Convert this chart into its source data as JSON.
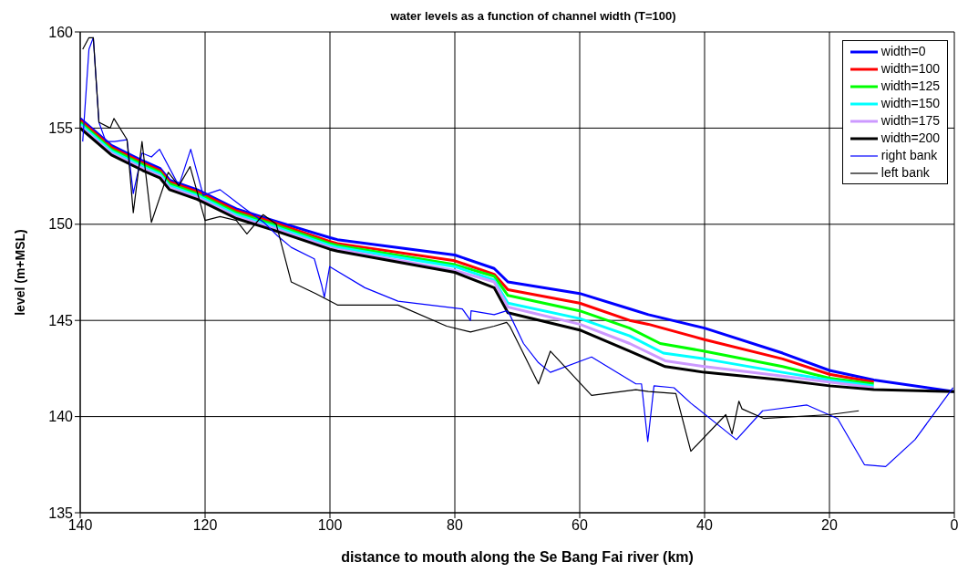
{
  "chart_data": {
    "type": "line",
    "title": "water levels as a function of channel width (T=100)",
    "xlabel": "distance to mouth along the Se Bang Fai river (km)",
    "ylabel": "level (m+MSL)",
    "xlim": [
      140,
      0
    ],
    "xticks": [
      140,
      120,
      100,
      80,
      60,
      40,
      20,
      0
    ],
    "ylim": [
      135,
      160
    ],
    "yticks": [
      135,
      140,
      145,
      150,
      155,
      160
    ],
    "grid": true,
    "legend": "top right",
    "marker": "none",
    "line_style": "solid",
    "series": [
      {
        "name": "width=0",
        "color": "#0000ff",
        "x": [
          140,
          135,
          130,
          127.2,
          125.7,
          121.3,
          120,
          115,
          109.1,
          100,
          98.8,
          80,
          73.7,
          71.5,
          60,
          52,
          49,
          40,
          27.5,
          20,
          12.9,
          0
        ],
        "values": [
          155.5,
          154.1,
          153.3,
          152.9,
          152.3,
          151.8,
          151.6,
          150.8,
          150.2,
          149.3,
          149.2,
          148.4,
          147.7,
          147.0,
          146.4,
          145.6,
          145.3,
          144.6,
          143.3,
          142.4,
          141.9,
          141.3
        ]
      },
      {
        "name": "width=100",
        "color": "#ff0000",
        "x": [
          140,
          135,
          130,
          127.2,
          125.7,
          121.3,
          120,
          115,
          109.1,
          100,
          98.8,
          80,
          73.7,
          71.5,
          60,
          52,
          49,
          40,
          27.5,
          20,
          12.9
        ],
        "values": [
          155.4,
          154.0,
          153.2,
          152.8,
          152.2,
          151.7,
          151.5,
          150.7,
          150.1,
          149.1,
          149.0,
          148.1,
          147.4,
          146.6,
          145.9,
          145.0,
          144.8,
          144.0,
          143.0,
          142.2,
          141.8
        ]
      },
      {
        "name": "width=125",
        "color": "#00ff00",
        "x": [
          140,
          135,
          130,
          127.2,
          125.7,
          121.3,
          120,
          115,
          109.1,
          100,
          98.8,
          80,
          73.7,
          71.5,
          60,
          52,
          47.1,
          40,
          27.5,
          20,
          12.9
        ],
        "values": [
          155.3,
          153.9,
          153.1,
          152.7,
          152.1,
          151.6,
          151.4,
          150.6,
          150.0,
          149.0,
          148.9,
          147.9,
          147.3,
          146.3,
          145.5,
          144.6,
          143.8,
          143.4,
          142.6,
          142.0,
          141.7
        ]
      },
      {
        "name": "width=150",
        "color": "#00ffff",
        "x": [
          140,
          135,
          130,
          127.2,
          125.7,
          121.3,
          120,
          115,
          109.1,
          100,
          98.8,
          80,
          73.7,
          71.5,
          60,
          52,
          46.6,
          40,
          27.5,
          20,
          12.9
        ],
        "values": [
          155.2,
          153.8,
          153.0,
          152.6,
          152.0,
          151.5,
          151.3,
          150.5,
          149.9,
          148.9,
          148.8,
          147.8,
          147.1,
          145.9,
          145.1,
          144.2,
          143.3,
          143.0,
          142.3,
          141.9,
          141.6
        ]
      },
      {
        "name": "width=175",
        "color": "#cc99ff",
        "x": [
          140,
          135,
          130,
          127.2,
          125.7,
          121.3,
          120,
          115,
          109.1,
          100,
          98.8,
          80,
          73.7,
          71.5,
          60,
          52,
          46.3,
          40,
          27.5,
          20,
          12.9
        ],
        "values": [
          155.1,
          153.7,
          152.9,
          152.5,
          151.9,
          151.4,
          151.2,
          150.4,
          149.8,
          148.8,
          148.7,
          147.6,
          147.0,
          145.7,
          144.8,
          143.8,
          142.9,
          142.6,
          142.1,
          141.8,
          141.5
        ]
      },
      {
        "name": "width=200",
        "color": "#000000",
        "x": [
          140,
          135,
          130,
          127.2,
          125.7,
          121.3,
          120,
          115,
          109.1,
          100,
          98.8,
          80,
          73.7,
          71.5,
          60,
          52,
          46.3,
          40,
          27.5,
          20,
          12.9,
          0
        ],
        "values": [
          155.0,
          153.6,
          152.8,
          152.4,
          151.8,
          151.3,
          151.1,
          150.3,
          149.7,
          148.7,
          148.6,
          147.5,
          146.7,
          145.4,
          144.5,
          143.4,
          142.6,
          142.3,
          141.9,
          141.6,
          141.4,
          141.3
        ]
      },
      {
        "name": "right bank",
        "color": "#0000ff",
        "x": [
          139.6,
          138.6,
          137.9,
          137.0,
          135.9,
          134.5,
          132.5,
          131.5,
          130.1,
          128.6,
          127.3,
          124.2,
          122.3,
          120.3,
          117.6,
          114.0,
          110.6,
          108.4,
          106.2,
          102.5,
          101.3,
          100.9,
          100.05,
          94.4,
          89.1,
          78.8,
          77.5,
          77.4,
          73.7,
          71.7,
          71.2,
          69.0,
          66.6,
          64.7,
          58.1,
          51.0,
          50.1,
          49.1,
          48.1,
          44.9,
          42.2,
          34.9,
          30.7,
          23.6,
          18.7,
          14.4,
          11.0,
          6.3,
          0.2
        ],
        "values": [
          154.3,
          159.1,
          159.7,
          155.3,
          154.3,
          154.3,
          154.4,
          151.6,
          153.7,
          153.5,
          153.9,
          152.0,
          153.9,
          151.5,
          151.8,
          150.9,
          150.1,
          149.4,
          148.8,
          148.2,
          146.8,
          146.2,
          147.8,
          146.7,
          146.0,
          145.6,
          145.0,
          145.5,
          145.3,
          145.5,
          145.3,
          143.8,
          142.8,
          142.3,
          143.1,
          141.7,
          141.7,
          138.7,
          141.6,
          141.5,
          140.7,
          138.8,
          140.3,
          140.6,
          139.9,
          137.5,
          137.4,
          138.8,
          141.5
        ]
      },
      {
        "name": "left bank",
        "color": "#000000",
        "x": [
          139.6,
          138.6,
          137.9,
          137.0,
          135.2,
          134.6,
          132.5,
          131.5,
          130.1,
          128.6,
          125.9,
          124.2,
          122.4,
          120.0,
          117.6,
          115.0,
          113.3,
          110.7,
          108.6,
          106.2,
          102.3,
          98.8,
          89.1,
          81.3,
          77.5,
          73.7,
          71.7,
          71.2,
          69.5,
          66.6,
          64.7,
          58.1,
          51.0,
          49.0,
          44.6,
          42.2,
          36.6,
          35.6,
          34.5,
          34.0,
          30.5,
          20,
          15.3
        ],
        "values": [
          159.1,
          159.7,
          159.7,
          155.3,
          155.0,
          155.5,
          154.4,
          150.6,
          154.3,
          150.1,
          152.7,
          152.0,
          153.0,
          150.2,
          150.4,
          150.2,
          149.5,
          150.5,
          150.0,
          147.0,
          146.4,
          145.8,
          145.8,
          144.7,
          144.4,
          144.7,
          144.9,
          144.7,
          143.6,
          141.7,
          143.4,
          141.1,
          141.4,
          141.3,
          141.2,
          138.2,
          140.1,
          139.1,
          140.8,
          140.4,
          139.9,
          140.1,
          140.3
        ]
      }
    ]
  }
}
